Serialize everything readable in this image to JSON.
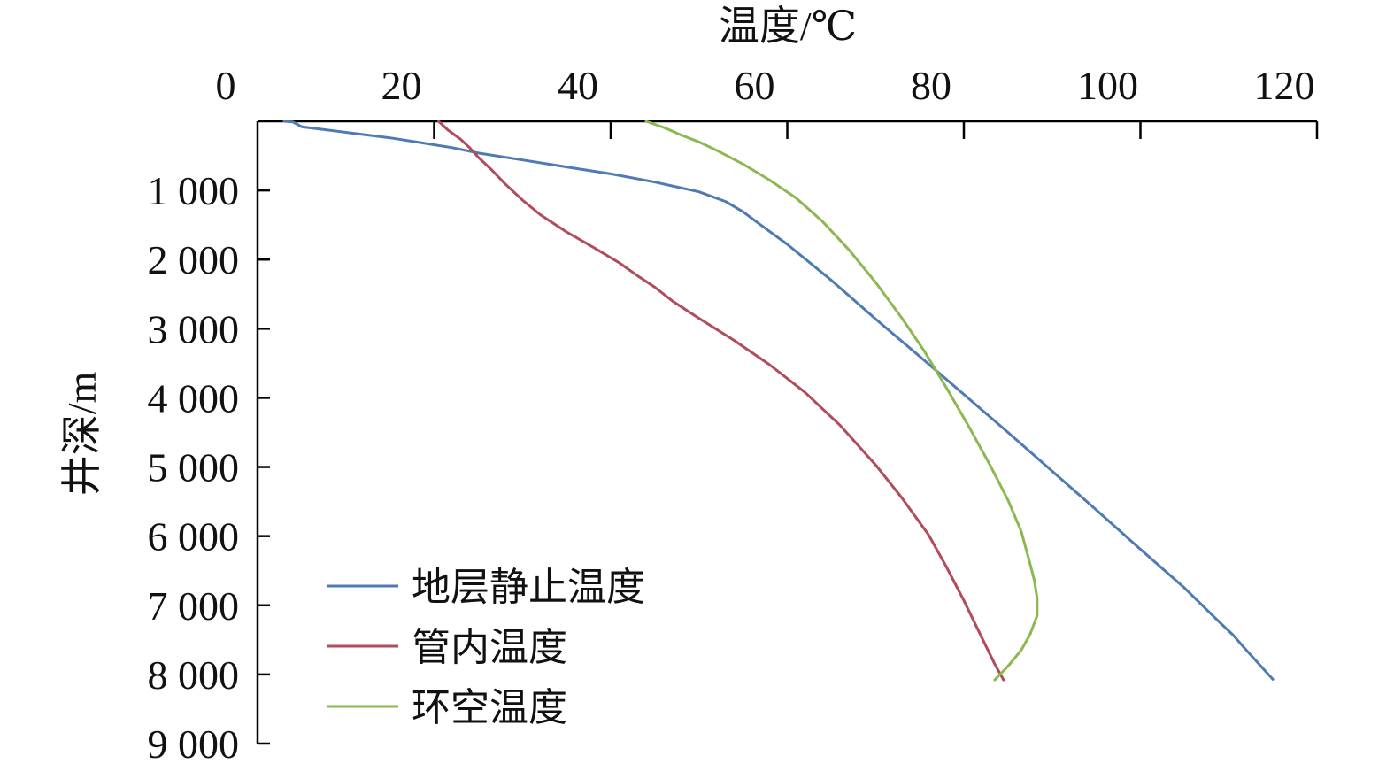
{
  "chart_data": {
    "type": "line",
    "title": "",
    "xlabel": "温度/℃",
    "ylabel": "井深/m",
    "xlim": [
      0,
      120
    ],
    "ylim": [
      0,
      9000
    ],
    "x_axis_position": "top",
    "y_axis_inverted": true,
    "grid": false,
    "legend_position": "bottom-left",
    "x_ticks": [
      {
        "value": 0,
        "label": "0"
      },
      {
        "value": 20,
        "label": "20"
      },
      {
        "value": 40,
        "label": "40"
      },
      {
        "value": 60,
        "label": "60"
      },
      {
        "value": 80,
        "label": "80"
      },
      {
        "value": 100,
        "label": "100"
      },
      {
        "value": 120,
        "label": "120"
      }
    ],
    "y_ticks": [
      {
        "value": 1000,
        "label": "1 000"
      },
      {
        "value": 2000,
        "label": "2 000"
      },
      {
        "value": 3000,
        "label": "3 000"
      },
      {
        "value": 4000,
        "label": "4 000"
      },
      {
        "value": 5000,
        "label": "5 000"
      },
      {
        "value": 6000,
        "label": "6 000"
      },
      {
        "value": 7000,
        "label": "7 000"
      },
      {
        "value": 8000,
        "label": "8 000"
      },
      {
        "value": 9000,
        "label": "9 000"
      }
    ],
    "series": [
      {
        "name": "地层静止温度",
        "color": "#4f7bb5",
        "points": [
          [
            3,
            0
          ],
          [
            4,
            10
          ],
          [
            5,
            80
          ],
          [
            10,
            160
          ],
          [
            15,
            240
          ],
          [
            18,
            300
          ],
          [
            22,
            380
          ],
          [
            25,
            460
          ],
          [
            30,
            560
          ],
          [
            35,
            660
          ],
          [
            40,
            760
          ],
          [
            45,
            880
          ],
          [
            50,
            1020
          ],
          [
            53,
            1160
          ],
          [
            55,
            1310
          ],
          [
            57,
            1500
          ],
          [
            60,
            1780
          ],
          [
            65,
            2300
          ],
          [
            70,
            2860
          ],
          [
            75,
            3400
          ],
          [
            80,
            3950
          ],
          [
            85,
            4500
          ],
          [
            90,
            5060
          ],
          [
            95,
            5620
          ],
          [
            100,
            6190
          ],
          [
            105,
            6750
          ],
          [
            109,
            7250
          ],
          [
            110.5,
            7430
          ],
          [
            112,
            7650
          ],
          [
            113.5,
            7860
          ],
          [
            115,
            8070
          ]
        ]
      },
      {
        "name": "管内温度",
        "color": "#b04c5c",
        "points": [
          [
            20.5,
            0
          ],
          [
            21.5,
            120
          ],
          [
            23,
            260
          ],
          [
            24,
            380
          ],
          [
            25,
            520
          ],
          [
            26.5,
            700
          ],
          [
            28,
            900
          ],
          [
            30,
            1140
          ],
          [
            32,
            1350
          ],
          [
            35,
            1600
          ],
          [
            38,
            1820
          ],
          [
            41,
            2050
          ],
          [
            43,
            2230
          ],
          [
            45,
            2400
          ],
          [
            47,
            2600
          ],
          [
            50,
            2850
          ],
          [
            54,
            3170
          ],
          [
            58,
            3520
          ],
          [
            62,
            3920
          ],
          [
            66,
            4400
          ],
          [
            70,
            4970
          ],
          [
            73,
            5450
          ],
          [
            76,
            5980
          ],
          [
            78,
            6440
          ],
          [
            80,
            6930
          ],
          [
            82,
            7460
          ],
          [
            83.5,
            7850
          ],
          [
            84.5,
            8080
          ]
        ]
      },
      {
        "name": "环空温度",
        "color": "#8cb850",
        "points": [
          [
            44,
            0
          ],
          [
            46,
            90
          ],
          [
            48,
            200
          ],
          [
            50,
            300
          ],
          [
            52,
            420
          ],
          [
            55,
            620
          ],
          [
            58,
            850
          ],
          [
            61,
            1110
          ],
          [
            64,
            1450
          ],
          [
            67,
            1860
          ],
          [
            70,
            2330
          ],
          [
            73,
            2850
          ],
          [
            75.5,
            3320
          ],
          [
            78,
            3850
          ],
          [
            80.5,
            4400
          ],
          [
            83,
            4980
          ],
          [
            85,
            5480
          ],
          [
            86.5,
            5930
          ],
          [
            87.5,
            6400
          ],
          [
            88,
            6650
          ],
          [
            88.3,
            6900
          ],
          [
            88.3,
            7150
          ],
          [
            87.5,
            7420
          ],
          [
            86.5,
            7650
          ],
          [
            85,
            7880
          ],
          [
            83.5,
            8080
          ]
        ]
      }
    ]
  }
}
